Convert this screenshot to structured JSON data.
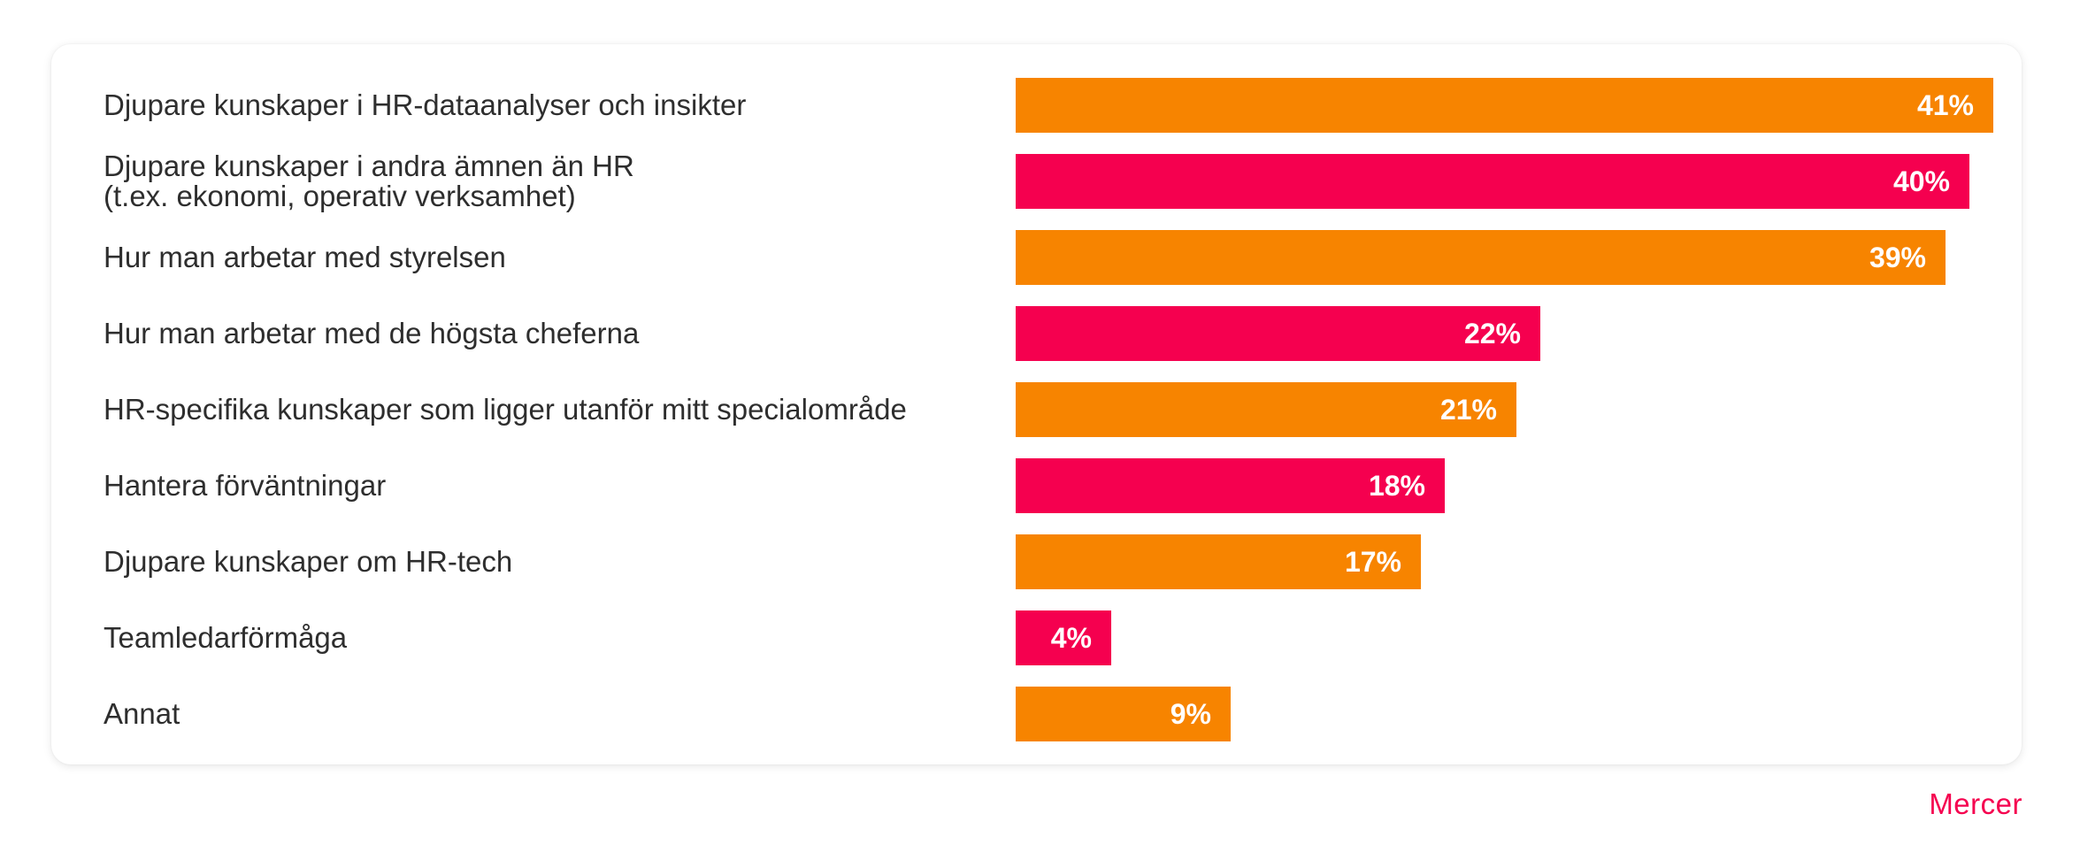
{
  "chart_data": {
    "type": "bar",
    "orientation": "horizontal",
    "categories": [
      "Djupare kunskaper i HR-dataanalyser och insikter",
      "Djupare kunskaper i andra ämnen än HR\n(t.ex. ekonomi, operativ verksamhet)",
      "Hur man arbetar med styrelsen",
      "Hur man arbetar med de högsta cheferna",
      "HR-specifika kunskaper som ligger utanför mitt specialområde",
      "Hantera förväntningar",
      "Djupare kunskaper om HR-tech",
      "Teamledarförmåga",
      "Annat"
    ],
    "values": [
      41,
      40,
      39,
      22,
      21,
      18,
      17,
      4,
      9
    ],
    "value_labels": [
      "41%",
      "40%",
      "39%",
      "22%",
      "21%",
      "18%",
      "17%",
      "4%",
      "9%"
    ],
    "bar_colors": [
      "#f78400",
      "#f5004f",
      "#f78400",
      "#f5004f",
      "#f78400",
      "#f5004f",
      "#f78400",
      "#f5004f",
      "#f78400"
    ],
    "xlim": [
      0,
      41
    ],
    "grid": false,
    "legend": "none",
    "title": "",
    "xlabel": "",
    "ylabel": ""
  },
  "brand": {
    "name": "Mercer",
    "color": "#f5004f"
  }
}
